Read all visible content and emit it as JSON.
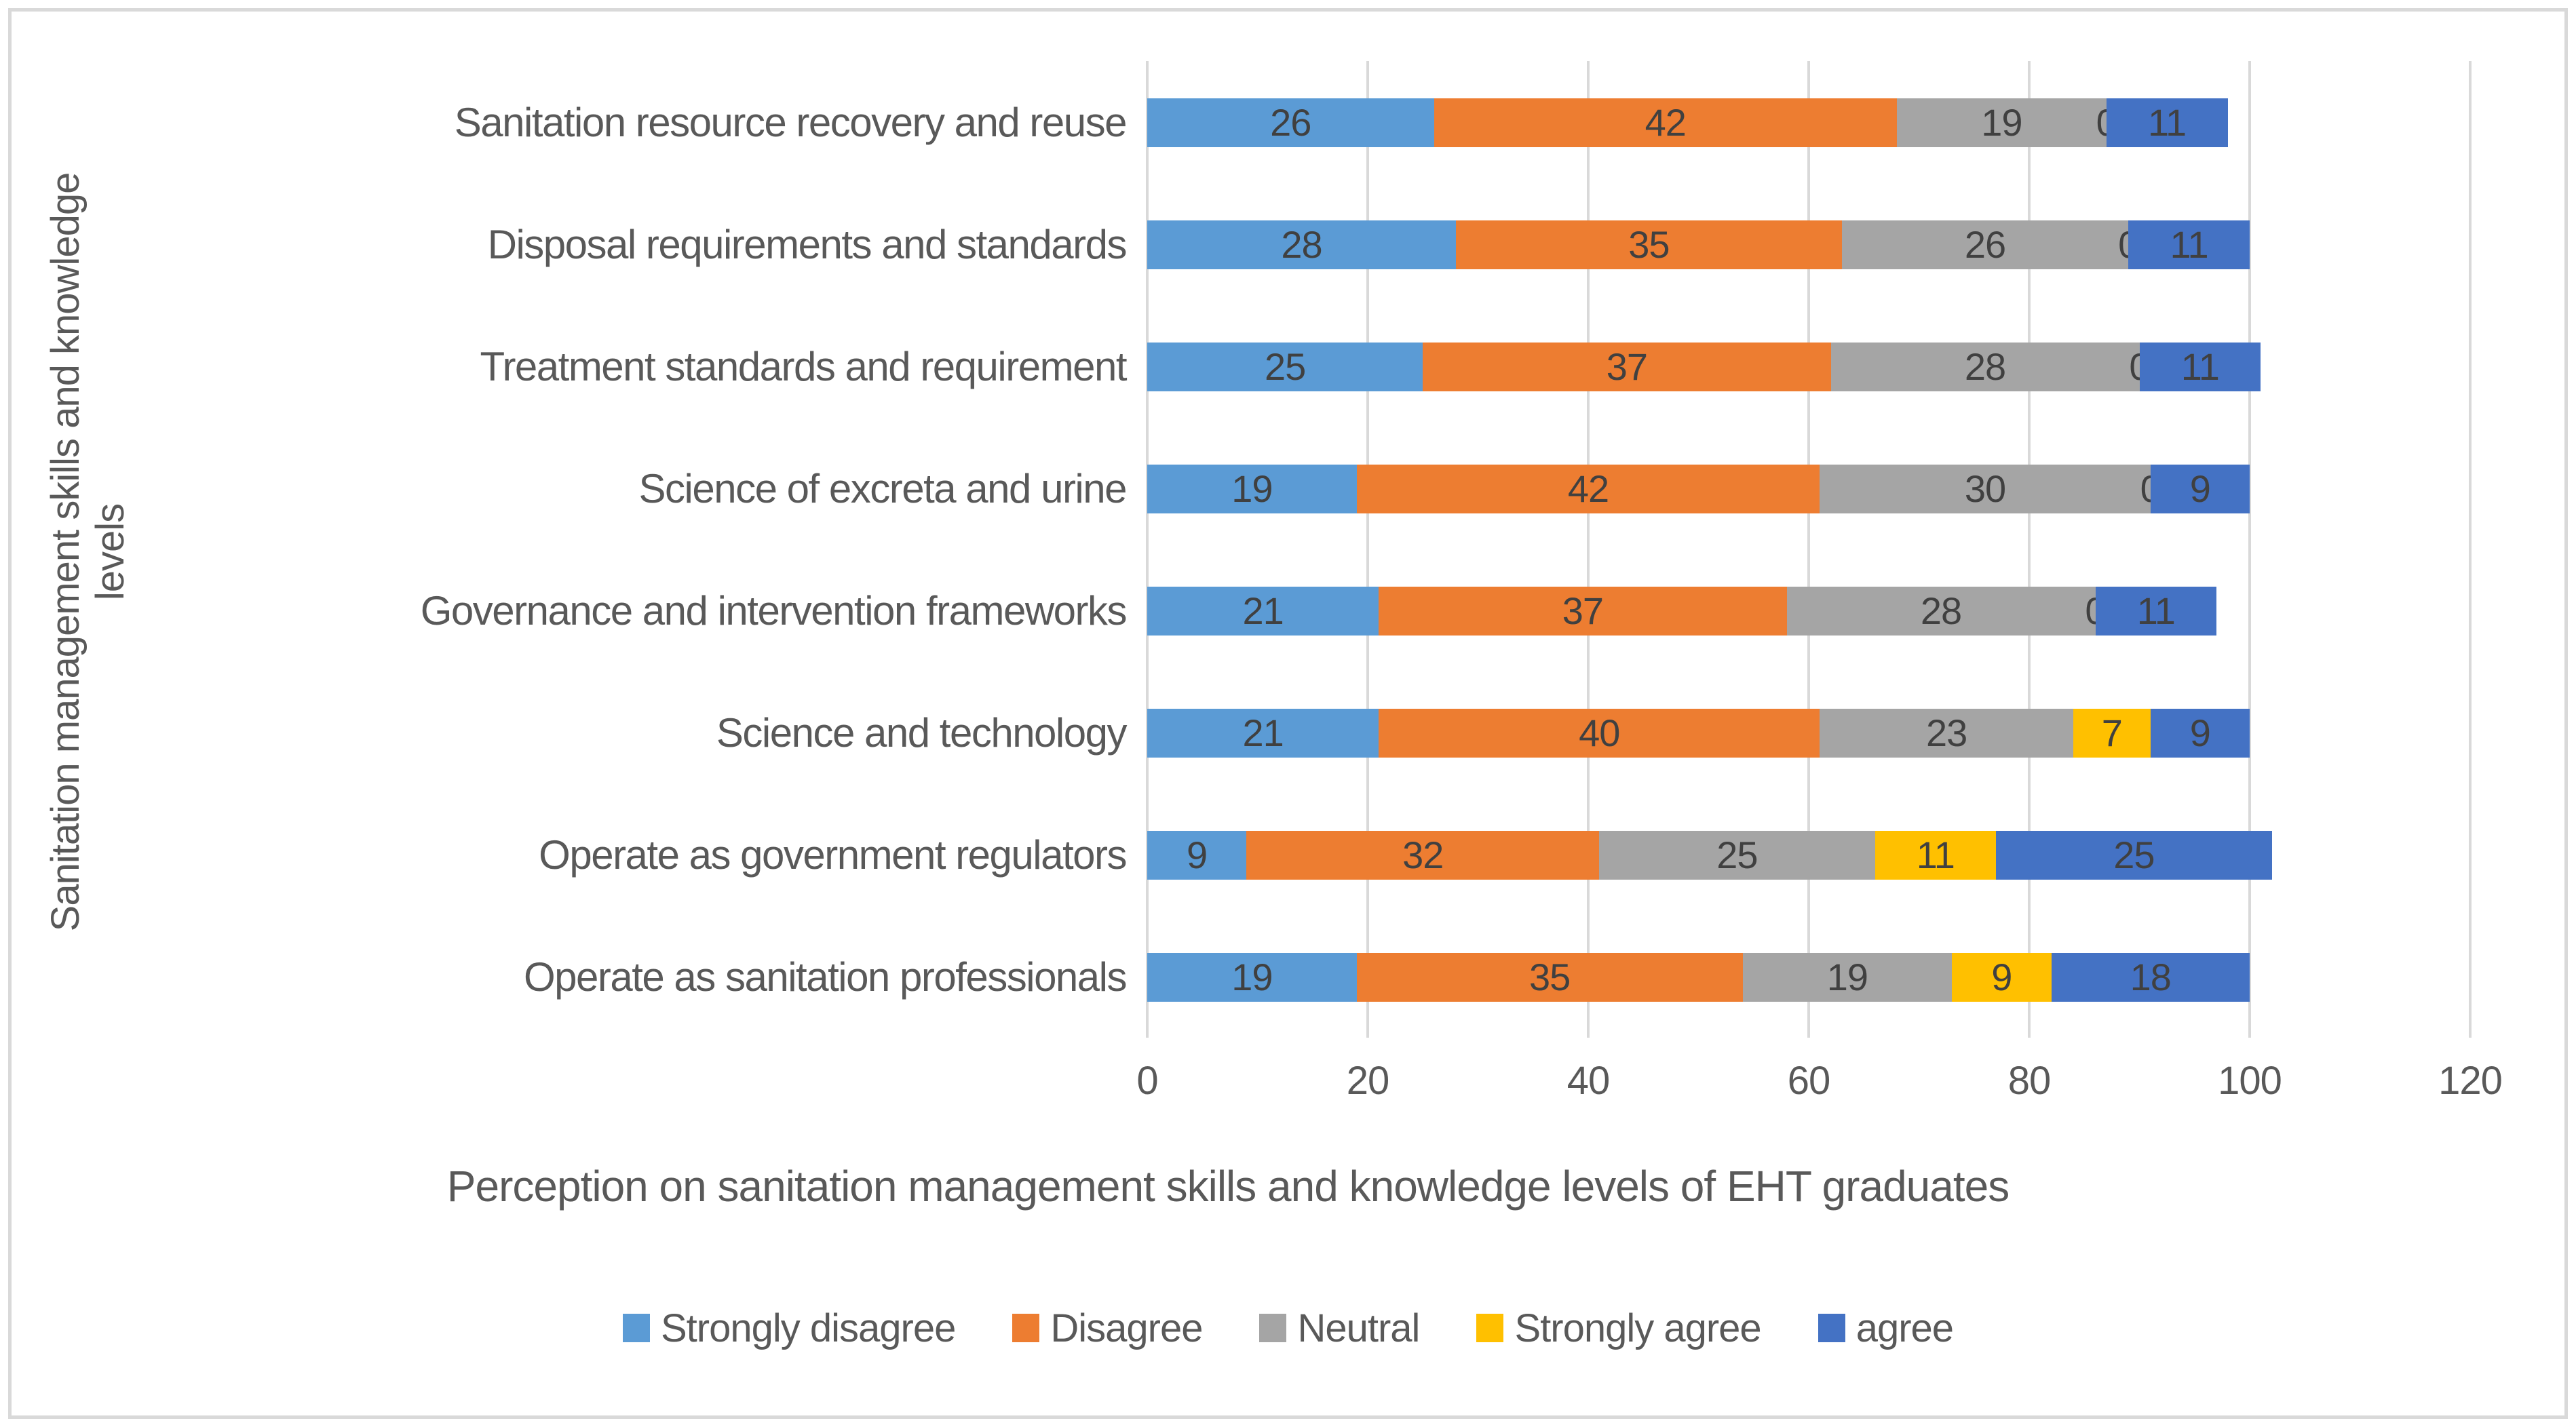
{
  "chart_data": {
    "type": "bar",
    "orientation": "horizontal",
    "stacked": true,
    "title": "",
    "xlabel": "Perception on sanitation management skills and knowledge levels  of EHT graduates",
    "ylabel": "Sanitation management skills and knowledge levels",
    "ylabel_lines": [
      "Sanitation management skills and knowledge",
      "levels"
    ],
    "xlim": [
      0,
      120
    ],
    "xticks": [
      0,
      20,
      40,
      60,
      80,
      100,
      120
    ],
    "grid": true,
    "data_labels": true,
    "legend_position": "bottom",
    "categories": [
      "Sanitation resource recovery and reuse",
      "Disposal requirements and standards",
      "Treatment standards and requirement",
      "Science of excreta and urine",
      "Governance and intervention frameworks",
      "Science and technology",
      "Operate as government regulators",
      "Operate as sanitation professionals"
    ],
    "series": [
      {
        "name": "Strongly disagree",
        "color": "#5B9BD5",
        "values": [
          26,
          28,
          25,
          19,
          21,
          21,
          9,
          19
        ]
      },
      {
        "name": "Disagree",
        "color": "#ED7D31",
        "values": [
          42,
          35,
          37,
          42,
          37,
          40,
          32,
          35
        ]
      },
      {
        "name": "Neutral",
        "color": "#A5A5A5",
        "values": [
          19,
          26,
          28,
          30,
          28,
          23,
          25,
          19
        ]
      },
      {
        "name": "Strongly agree",
        "color": "#FFC000",
        "values": [
          0,
          0,
          0,
          0,
          0,
          7,
          11,
          9
        ]
      },
      {
        "name": "agree",
        "color": "#4472C4",
        "values": [
          11,
          11,
          11,
          9,
          11,
          9,
          25,
          18
        ]
      }
    ]
  },
  "style": {
    "background": "#FFFFFF",
    "border_color": "#D9D9D9",
    "gridline_color": "#D9D9D9",
    "axis_text_color": "#595959",
    "data_label_color": "#404040"
  }
}
